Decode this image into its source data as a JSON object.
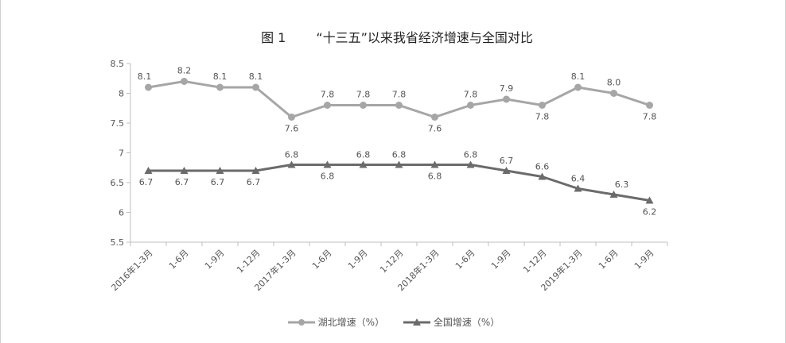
{
  "chart_data": {
    "type": "line",
    "title_prefix": "图 1",
    "title": "“十三五”以来我省经济增速与全国对比",
    "xlabel": "",
    "ylabel": "",
    "categories": [
      "2016年1-3月",
      "1-6月",
      "1-9月",
      "1-12月",
      "2017年1-3月",
      "1-6月",
      "1-9月",
      "1-12月",
      "2018年1-3月",
      "1-6月",
      "1-9月",
      "1-12月",
      "2019年1-3月",
      "1-6月",
      "1-9月"
    ],
    "ylim": [
      5.5,
      8.5
    ],
    "yticks": [
      "5.5",
      "6",
      "6.5",
      "7",
      "7.5",
      "8",
      "8.5"
    ],
    "grid": false,
    "legend_position": "bottom",
    "series": [
      {
        "name": "湖北增速（%）",
        "marker": "circle",
        "color": "#a6a6a6",
        "values": [
          8.1,
          8.2,
          8.1,
          8.1,
          7.6,
          7.8,
          7.8,
          7.8,
          7.6,
          7.8,
          7.9,
          7.8,
          8.1,
          8.0,
          7.8
        ],
        "labels": [
          "8.1",
          "8.2",
          "8.1",
          "8.1",
          "7.6",
          "7.8",
          "7.8",
          "7.8",
          "7.6",
          "7.8",
          "7.9",
          "7.8",
          "8.1",
          "8.0",
          "7.8"
        ]
      },
      {
        "name": "全国增速（%）",
        "marker": "triangle",
        "color": "#6b6b6b",
        "values": [
          6.7,
          6.7,
          6.7,
          6.7,
          6.8,
          6.8,
          6.8,
          6.8,
          6.8,
          6.8,
          6.7,
          6.6,
          6.4,
          6.3,
          6.2
        ],
        "labels": [
          "6.7",
          "6.7",
          "6.7",
          "6.7",
          "6.8",
          "6.8",
          "6.8",
          "6.8",
          "6.8",
          "6.8",
          "6.7",
          "6.6",
          "6.4",
          "6.3",
          "6.2"
        ]
      }
    ]
  }
}
